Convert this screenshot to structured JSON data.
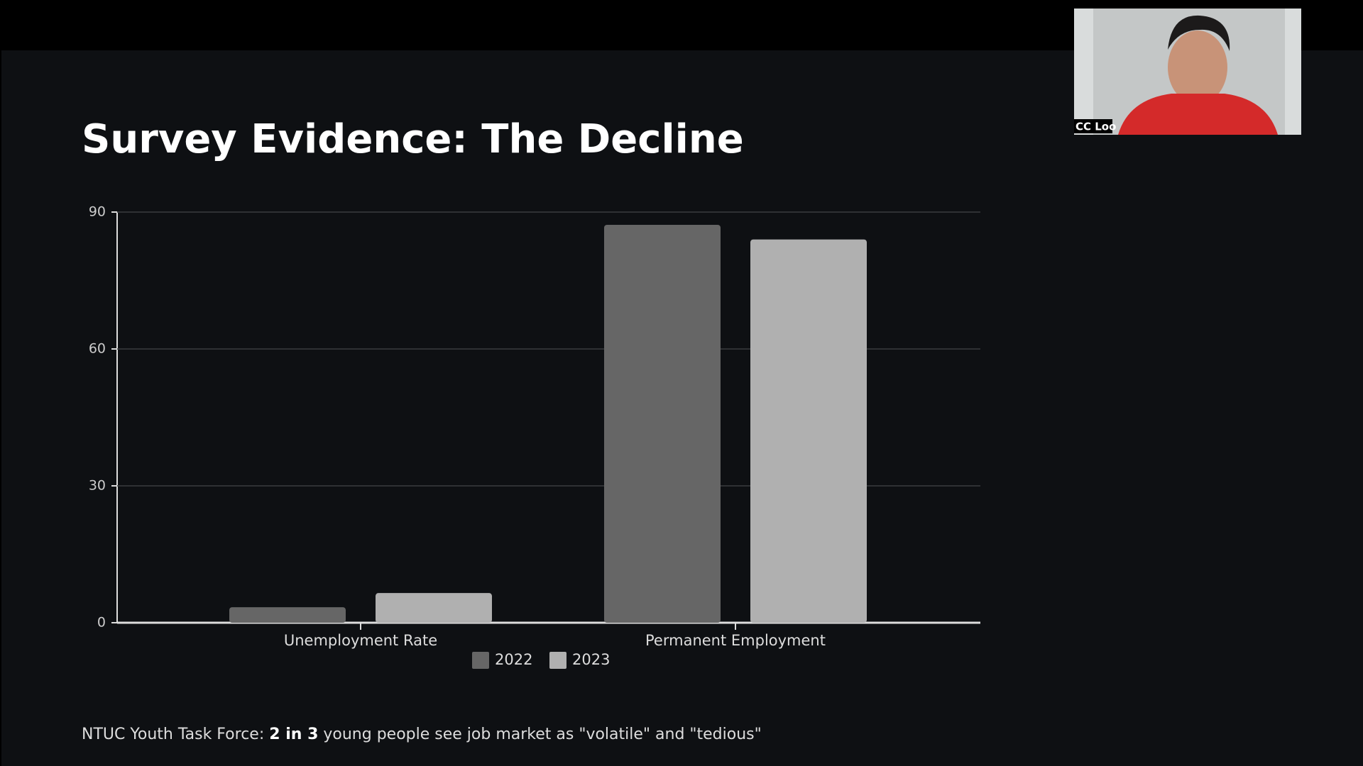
{
  "chart_data": {
    "type": "bar",
    "title": "Survey Evidence: The Decline",
    "categories": [
      "Unemployment Rate",
      "Permanent Employment"
    ],
    "series": [
      {
        "name": "2022",
        "color": "#666666",
        "values": [
          3.4,
          87.2
        ]
      },
      {
        "name": "2023",
        "color": "#b0b0b0",
        "values": [
          6.5,
          84
        ]
      }
    ],
    "ylim": [
      0,
      90
    ],
    "yticks": [
      0,
      30,
      60,
      90
    ],
    "grid": true
  },
  "footer": {
    "prefix": "NTUC Youth Task Force: ",
    "emphasis": "2 in 3",
    "suffix": " young people see job market as \"volatile\" and \"tedious\""
  },
  "video": {
    "participant": "CC Loo"
  }
}
